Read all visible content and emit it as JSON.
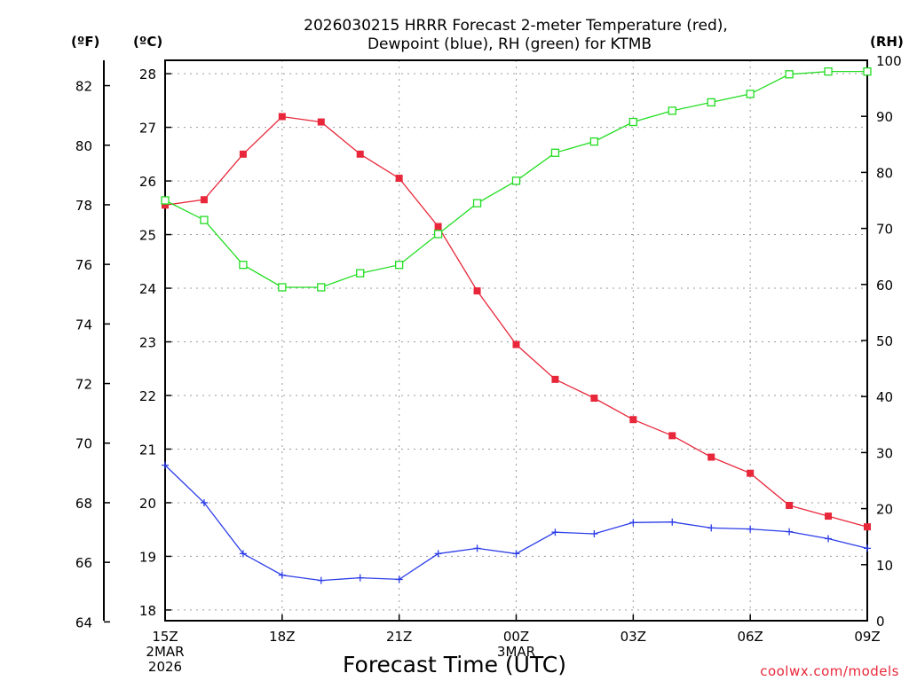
{
  "chart_data": {
    "type": "line",
    "title_line1": "2026030215 HRRR Forecast 2-meter Temperature (red),",
    "title_line2": "Dewpoint (blue), RH (green) for KTMB",
    "xlabel": "Forecast Time (UTC)",
    "credit": "coolwx.com/models",
    "units": {
      "f": "(ºF)",
      "c": "(ºC)",
      "rh": "(RH)"
    },
    "hours": [
      0,
      1,
      2,
      3,
      4,
      5,
      6,
      7,
      8,
      9,
      10,
      11,
      12,
      13,
      14,
      15,
      16,
      17,
      18
    ],
    "x_ticks": [
      {
        "hour": 0,
        "lines": [
          "15Z",
          "2MAR",
          "2026"
        ]
      },
      {
        "hour": 3,
        "lines": [
          "18Z"
        ]
      },
      {
        "hour": 6,
        "lines": [
          "21Z"
        ]
      },
      {
        "hour": 9,
        "lines": [
          "00Z",
          "3MAR"
        ]
      },
      {
        "hour": 12,
        "lines": [
          "03Z"
        ]
      },
      {
        "hour": 15,
        "lines": [
          "06Z"
        ]
      },
      {
        "hour": 18,
        "lines": [
          "09Z"
        ]
      }
    ],
    "celsius_ticks": [
      "18",
      "19",
      "20",
      "21",
      "22",
      "23",
      "24",
      "25",
      "26",
      "27",
      "28"
    ],
    "fahrenheit_ticks": [
      "64",
      "66",
      "68",
      "70",
      "72",
      "74",
      "76",
      "78",
      "80",
      "82"
    ],
    "rh_ticks": [
      "0",
      "10",
      "20",
      "30",
      "40",
      "50",
      "60",
      "70",
      "80",
      "90",
      "100"
    ],
    "ylim_celsius": [
      17.8,
      28.25
    ],
    "ylim_rh": [
      0,
      100
    ],
    "series": [
      {
        "name": "Temperature",
        "unit": "C",
        "color": "#e8273a",
        "marker": "filled-square",
        "values": [
          25.55,
          25.65,
          26.5,
          27.2,
          27.1,
          26.5,
          26.05,
          25.15,
          23.95,
          22.95,
          22.3,
          21.95,
          21.55,
          21.25,
          20.85,
          20.55,
          19.95,
          19.75,
          19.55
        ]
      },
      {
        "name": "Dewpoint",
        "unit": "C",
        "color": "#2b3ce8",
        "marker": "plus",
        "values": [
          20.7,
          20.0,
          19.05,
          18.65,
          18.55,
          18.6,
          18.57,
          19.05,
          19.15,
          19.05,
          19.45,
          19.42,
          19.63,
          19.64,
          19.53,
          19.51,
          19.46,
          19.33,
          19.15
        ]
      },
      {
        "name": "RH",
        "unit": "%",
        "color": "#22dd22",
        "marker": "open-square",
        "values": [
          75,
          71.5,
          63.5,
          59.5,
          59.5,
          62,
          63.5,
          69,
          74.5,
          78.5,
          83.5,
          85.5,
          89,
          91,
          92.5,
          94,
          97.5,
          98,
          98
        ]
      }
    ]
  }
}
